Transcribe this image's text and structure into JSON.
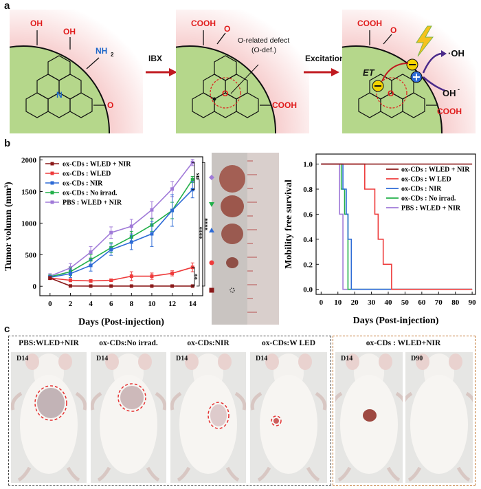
{
  "panels": {
    "a": "a",
    "b": "b",
    "c": "c"
  },
  "scheme": {
    "arrow1_label": "IBX",
    "arrow2_label": "Excitation",
    "s1": {
      "oh1": "OH",
      "oh2": "OH",
      "nh2": "NH",
      "nh2_sub": "2",
      "n": "N",
      "o": "O"
    },
    "s2": {
      "cooh1": "COOH",
      "cooh2": "COOH",
      "o_top": "O",
      "o_center": "O",
      "defect": "O-related defect",
      "defect_abbr": "(O-def.)"
    },
    "s3": {
      "cooh1": "COOH",
      "cooh2": "COOH",
      "o_top": "O",
      "o_center": "O",
      "et": "ET",
      "oh_rad": "·OH",
      "oh_ion": "OH",
      "oh_ion_sup": "-"
    }
  },
  "tumor_chart": {
    "ylabel": "Tumor volumn (mm³)",
    "xlabel": "Days (Post-injection)",
    "significance": [
      "ns",
      "****",
      "****",
      "**"
    ]
  },
  "survival_chart": {
    "ylabel": "Mobility free survival",
    "xlabel": "Days (Post-injection)"
  },
  "chart_data": [
    {
      "type": "line",
      "xlabel": "Days (Post-injection)",
      "ylabel": "Tumor volumn (mm³)",
      "xlim": [
        -1,
        15
      ],
      "ylim": [
        -150,
        2050
      ],
      "xticks": [
        0,
        2,
        4,
        6,
        8,
        10,
        12,
        14
      ],
      "yticks": [
        0,
        500,
        1000,
        1500,
        2000
      ],
      "x": [
        0,
        2,
        4,
        6,
        8,
        10,
        12,
        14
      ],
      "series": [
        {
          "name": "ox-CDs : WLED + NIR",
          "color": "#8b1a1a",
          "values": [
            130,
            5,
            3,
            3,
            3,
            3,
            3,
            3
          ],
          "err": [
            25,
            5,
            3,
            3,
            3,
            3,
            3,
            3
          ]
        },
        {
          "name": "ox-CDs : WLED",
          "color": "#ee3b3b",
          "values": [
            130,
            95,
            85,
            95,
            160,
            160,
            205,
            300
          ],
          "err": [
            25,
            25,
            20,
            20,
            70,
            50,
            40,
            70
          ]
        },
        {
          "name": "ox-CDs : NIR",
          "color": "#2e6bd6",
          "values": [
            140,
            200,
            330,
            580,
            700,
            830,
            1200,
            1530
          ],
          "err": [
            30,
            60,
            90,
            90,
            120,
            200,
            250,
            130
          ]
        },
        {
          "name": "ox-CDs : No irrad.",
          "color": "#22b04a",
          "values": [
            150,
            230,
            420,
            610,
            780,
            970,
            1200,
            1690
          ],
          "err": [
            30,
            60,
            80,
            80,
            90,
            100,
            130,
            50
          ]
        },
        {
          "name": "PBS : WLED + NIR",
          "color": "#a07ad8",
          "values": [
            160,
            290,
            540,
            850,
            950,
            1210,
            1540,
            1960
          ],
          "err": [
            40,
            70,
            90,
            90,
            110,
            130,
            120,
            50
          ]
        }
      ]
    },
    {
      "type": "line",
      "xlabel": "Days (Post-injection)",
      "ylabel": "Mobility free survival",
      "xlim": [
        -3,
        92
      ],
      "ylim": [
        -0.04,
        1.08
      ],
      "xticks": [
        0,
        10,
        20,
        30,
        40,
        50,
        60,
        70,
        80,
        90
      ],
      "yticks": [
        0.0,
        0.2,
        0.4,
        0.6,
        0.8,
        1.0
      ],
      "series": [
        {
          "name": "ox-CDs : WLED + NIR",
          "color": "#8b1a1a",
          "steps": [
            [
              0,
              1.0
            ],
            [
              90,
              1.0
            ]
          ]
        },
        {
          "name": "ox-CDs : W LED",
          "color": "#ee3b3b",
          "steps": [
            [
              0,
              1.0
            ],
            [
              26,
              1.0
            ],
            [
              26,
              0.8
            ],
            [
              32,
              0.8
            ],
            [
              32,
              0.6
            ],
            [
              34,
              0.6
            ],
            [
              34,
              0.4
            ],
            [
              37,
              0.4
            ],
            [
              37,
              0.2
            ],
            [
              42,
              0.2
            ],
            [
              42,
              0.0
            ],
            [
              90,
              0.0
            ]
          ]
        },
        {
          "name": "ox-CDs : NIR",
          "color": "#2e6bd6",
          "steps": [
            [
              0,
              1.0
            ],
            [
              13,
              1.0
            ],
            [
              13,
              0.8
            ],
            [
              15,
              0.8
            ],
            [
              15,
              0.6
            ],
            [
              16,
              0.6
            ],
            [
              16,
              0.4
            ],
            [
              18,
              0.4
            ],
            [
              18,
              0.0
            ],
            [
              90,
              0.0
            ]
          ]
        },
        {
          "name": "ox-CDs : No irrad.",
          "color": "#22b04a",
          "steps": [
            [
              0,
              1.0
            ],
            [
              12,
              1.0
            ],
            [
              12,
              0.8
            ],
            [
              14,
              0.8
            ],
            [
              14,
              0.6
            ],
            [
              16,
              0.6
            ],
            [
              16,
              0.0
            ],
            [
              90,
              0.0
            ]
          ]
        },
        {
          "name": "PBS : WLED + NIR",
          "color": "#a07ad8",
          "steps": [
            [
              0,
              1.0
            ],
            [
              11,
              1.0
            ],
            [
              11,
              0.6
            ],
            [
              13,
              0.6
            ],
            [
              13,
              0.0
            ],
            [
              90,
              0.0
            ]
          ]
        }
      ]
    }
  ],
  "photos": {
    "tumor_photo_markers": [
      "#a07ad8",
      "#22b04a",
      "#2e6bd6",
      "#ee3b3b",
      "#8b1a1a"
    ],
    "groups": [
      {
        "caption": "PBS:WLED+NIR",
        "day": "D14"
      },
      {
        "caption": "ox-CDs:No irrad.",
        "day": "D14"
      },
      {
        "caption": "ox-CDs:NIR",
        "day": "D14"
      },
      {
        "caption": "ox-CDs:W LED",
        "day": "D14"
      }
    ],
    "treated": {
      "caption": "ox-CDs : WLED+NIR",
      "day1": "D14",
      "day2": "D90"
    }
  }
}
